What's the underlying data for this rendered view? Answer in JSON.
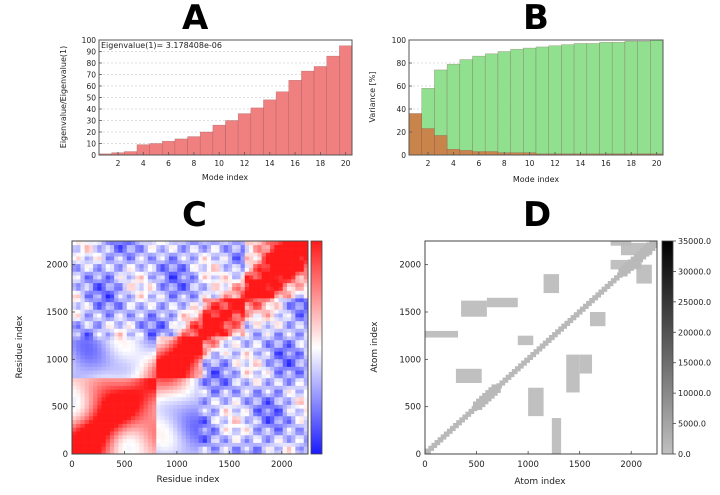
{
  "panels": {
    "a": {
      "letter": "A"
    },
    "b": {
      "letter": "B"
    },
    "c": {
      "letter": "C"
    },
    "d": {
      "letter": "D"
    }
  },
  "chart_data": [
    {
      "panel": "A",
      "type": "bar",
      "title": "",
      "annotation": "Eigenvalue(1)= 3.178408e-06",
      "xlabel": "Mode index",
      "ylabel": "Eigenvalue/Eigenvalue(1)",
      "x": [
        1,
        2,
        3,
        4,
        5,
        6,
        7,
        8,
        9,
        10,
        11,
        12,
        13,
        14,
        15,
        16,
        17,
        18,
        19,
        20
      ],
      "values": [
        1,
        2,
        3,
        9,
        10,
        12,
        14,
        16,
        20,
        26,
        30,
        36,
        41,
        48,
        55,
        65,
        73,
        77,
        86,
        95
      ],
      "xlim": [
        0.5,
        20.5
      ],
      "ylim": [
        0,
        100
      ],
      "xticks": [
        2,
        4,
        6,
        8,
        10,
        12,
        14,
        16,
        18,
        20
      ],
      "yticks": [
        0,
        10,
        20,
        30,
        40,
        50,
        60,
        70,
        80,
        90,
        100
      ],
      "bar_color": "#f08080",
      "grid": true
    },
    {
      "panel": "B",
      "type": "bar",
      "title": "",
      "xlabel": "Mode index",
      "ylabel": "Variance [%]",
      "x": [
        1,
        2,
        3,
        4,
        5,
        6,
        7,
        8,
        9,
        10,
        11,
        12,
        13,
        14,
        15,
        16,
        17,
        18,
        19,
        20
      ],
      "series": [
        {
          "values": [
            36,
            58,
            74,
            79,
            83,
            86,
            88,
            90,
            92,
            93,
            94,
            95,
            96,
            97,
            97,
            98,
            98,
            99,
            99,
            100
          ],
          "color": "#90e090"
        },
        {
          "values": [
            36,
            23,
            17,
            5,
            4,
            3,
            3,
            2,
            2,
            2,
            1,
            1,
            1,
            1,
            1,
            1,
            1,
            1,
            1,
            1
          ],
          "color": "#c8844a"
        }
      ],
      "xlim": [
        0.5,
        20.5
      ],
      "ylim": [
        0,
        100
      ],
      "xticks": [
        2,
        4,
        6,
        8,
        10,
        12,
        14,
        16,
        18,
        20
      ],
      "yticks": [
        0,
        20,
        40,
        60,
        80,
        100
      ],
      "grid": true
    },
    {
      "panel": "C",
      "type": "heatmap",
      "title": "",
      "xlabel": "Residue index",
      "ylabel": "Residue index",
      "xlim": [
        0,
        2250
      ],
      "ylim": [
        0,
        2250
      ],
      "xticks": [
        0,
        500,
        1000,
        1500,
        2000
      ],
      "yticks": [
        0,
        500,
        1000,
        1500,
        2000
      ],
      "colormap": [
        "#1a1aff",
        "#ffffff",
        "#ff1a1a"
      ],
      "colorbar_ticks": []
    },
    {
      "panel": "D",
      "type": "heatmap",
      "title": "",
      "xlabel": "Atom index",
      "ylabel": "Atom index",
      "xlim": [
        0,
        2250
      ],
      "ylim": [
        0,
        2250
      ],
      "xticks": [
        0,
        500,
        1000,
        1500,
        2000
      ],
      "yticks": [
        0,
        500,
        1000,
        1500,
        2000
      ],
      "colormap": [
        "#c0c0c0",
        "#000000"
      ],
      "colorbar_ticks": [
        "35000.0",
        "30000.0",
        "25000.0",
        "20000.0",
        "15000.0",
        "10000.0",
        "5000.0",
        "0.0"
      ],
      "marker_color": "#b9b9b9"
    }
  ]
}
